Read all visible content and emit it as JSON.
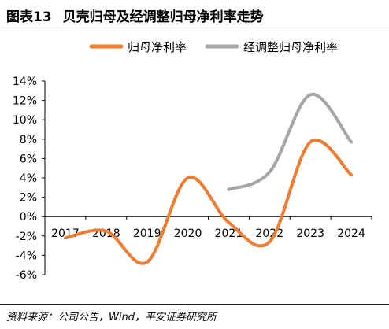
{
  "header": {
    "figure_number": "图表13",
    "title": "贝壳归母及经调整归母净利率走势"
  },
  "source_note": "资料来源：公司公告，Wind，平安证券研究所",
  "chart_data": {
    "type": "line",
    "categories": [
      "2017",
      "2018",
      "2019",
      "2020",
      "2021",
      "2022",
      "2023",
      "2024"
    ],
    "series": [
      {
        "name": "归母净利率",
        "color": "#ED7D31",
        "values": [
          -2.2,
          -1.5,
          -4.7,
          4.0,
          -0.6,
          -2.6,
          7.7,
          4.3
        ]
      },
      {
        "name": "经调整归母净利率",
        "color": "#A6A6A6",
        "values": [
          null,
          null,
          null,
          null,
          2.8,
          4.6,
          12.6,
          7.7
        ]
      }
    ],
    "ylim": [
      -6,
      14
    ],
    "yticks": [
      -6,
      -4,
      -2,
      0,
      2,
      4,
      6,
      8,
      10,
      12,
      14
    ],
    "ytick_labels": [
      "-6%",
      "-4%",
      "-2%",
      "0%",
      "2%",
      "4%",
      "6%",
      "8%",
      "10%",
      "12%",
      "14%"
    ],
    "legend_position": "top-right",
    "grid": false
  }
}
